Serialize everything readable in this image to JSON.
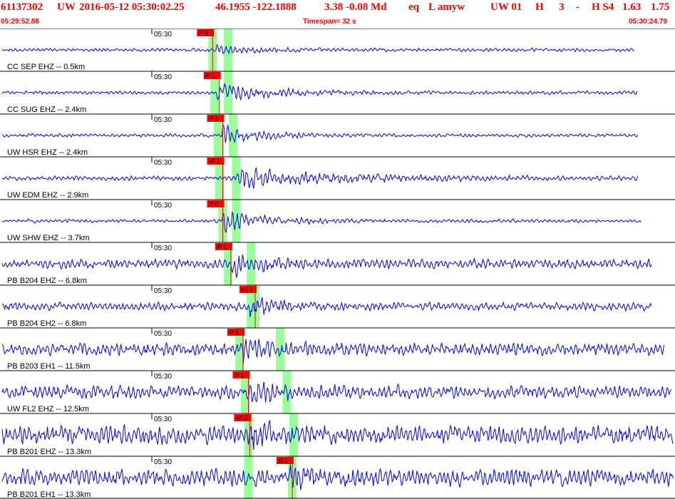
{
  "header": {
    "event_id": "61137302",
    "network": "UW",
    "datetime": "2016-05-12 05:30:02.25",
    "latlon": "46.1955 -122.1888",
    "depth_mag": "3.38 -0.08 Md",
    "etype": "eq",
    "flags": "L amyw",
    "src": "UW 01",
    "quality": "H",
    "nph": "3",
    "dash": "-",
    "qual2": "H S4",
    "rms": "1.63",
    "mag2": "1.75",
    "start_time": "05:29:52.88",
    "timespan": "Timespan=  32 s",
    "end_time": "05:30:24.79"
  },
  "colors": {
    "header_text": "#ff0000",
    "trace": "#0000ff",
    "pick": "#ff0000",
    "pick_label_bg": "#ff0000",
    "window": "#99ff99",
    "separator": "#000000"
  },
  "panels": [
    {
      "label": "CC SEP EHZ -- 0.5km",
      "time_label": "05:30",
      "pick": "iP 0",
      "pick_t": 0.315,
      "win1": 0.315,
      "win2": 0.338,
      "amp": 7,
      "noise": 3,
      "onset": 0.32,
      "coda": 0.1,
      "end": 0.94
    },
    {
      "label": "CC SUG EHZ -- 2.4km",
      "time_label": "05:30",
      "pick": "iP 1",
      "pick_t": 0.325,
      "win1": 0.318,
      "win2": 0.338,
      "amp": 14,
      "noise": 3,
      "onset": 0.32,
      "coda": 0.14,
      "end": 0.945
    },
    {
      "label": "UW HSR EHZ -- 2.4km",
      "time_label": "05:30",
      "pick": "iP 1",
      "pick_t": 0.33,
      "win1": 0.323,
      "win2": 0.345,
      "amp": 16,
      "noise": 3,
      "onset": 0.33,
      "coda": 0.09,
      "end": 0.945
    },
    {
      "label": "UW EDM EHZ -- 2.9km",
      "time_label": "05:30",
      "pick": "eP 2",
      "pick_t": 0.33,
      "win1": 0.325,
      "win2": 0.35,
      "amp": 16,
      "noise": 4,
      "onset": 0.35,
      "coda": 0.23,
      "end": 0.945
    },
    {
      "label": "UW SHW EHZ -- 3.7km",
      "time_label": "05:30",
      "pick": "iP 0",
      "pick_t": 0.33,
      "win1": 0.33,
      "win2": 0.35,
      "amp": 20,
      "noise": 3,
      "onset": 0.33,
      "coda": 0.1,
      "end": 0.95
    },
    {
      "label": "PB B204 EHZ -- 6.8km",
      "time_label": "05:30",
      "pick": "iP 1",
      "pick_t": 0.342,
      "win1": 0.338,
      "win2": 0.372,
      "amp": 18,
      "noise": 8,
      "onset": 0.34,
      "coda": 0.08,
      "end": 0.965
    },
    {
      "label": "PB B204 EH2 -- 6.8km",
      "time_label": "05:30",
      "pick": "eS 1",
      "pick_t": 0.378,
      "win1": 0.372,
      "win2": 0.378,
      "amp": 16,
      "noise": 7,
      "onset": 0.37,
      "coda": 0.06,
      "end": 0.965
    },
    {
      "label": "PB B203 EH1 -- 11.5km",
      "time_label": "05:30",
      "pick": "iP 1",
      "pick_t": 0.36,
      "win1": 0.355,
      "win2": 0.415,
      "amp": 18,
      "noise": 11,
      "onset": 0.36,
      "coda": 0.06,
      "end": 0.985
    },
    {
      "label": "UW FL2 EHZ -- 12.5km",
      "time_label": "05:30",
      "pick": "iP 1",
      "pick_t": 0.368,
      "win1": 0.363,
      "win2": 0.425,
      "amp": 18,
      "noise": 11,
      "onset": 0.37,
      "coda": 0.08,
      "end": 0.995
    },
    {
      "label": "PB B201 EHZ -- 13.3km",
      "time_label": "05:30",
      "pick": "eP 2",
      "pick_t": 0.37,
      "win1": 0.368,
      "win2": 0.435,
      "amp": 18,
      "noise": 16,
      "onset": 0.37,
      "coda": 0.05,
      "end": 0.998
    },
    {
      "label": "PB B201 EH1 -- 13.3km",
      "time_label": "05:30",
      "pick": "iS 1",
      "pick_t": 0.433,
      "win1": 0.368,
      "win2": 0.433,
      "amp": 16,
      "noise": 15,
      "onset": 0.43,
      "coda": 0.05,
      "end": 0.998
    }
  ]
}
